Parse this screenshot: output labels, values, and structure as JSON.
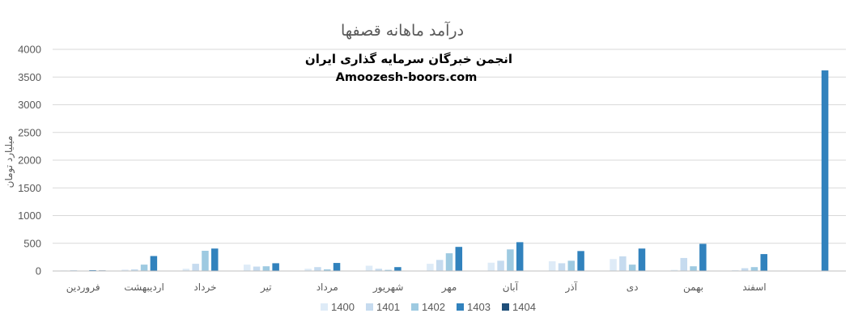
{
  "chart_data": {
    "type": "bar",
    "title": "درآمد ماهانه قصفها",
    "ylabel": "میلیارد تومان",
    "ylim": [
      0,
      4000
    ],
    "yticks": [
      0,
      500,
      1000,
      1500,
      2000,
      2500,
      3000,
      3500,
      4000
    ],
    "grid": true,
    "legend_position": "bottom",
    "categories": [
      "فروردین",
      "اردیبهشت",
      "خرداد",
      "تیر",
      "مرداد",
      "شهریور",
      "مهر",
      "آبان",
      "آذر",
      "دی",
      "بهمن",
      "اسفند",
      ""
    ],
    "series": [
      {
        "name": "1400",
        "color": "#deebf7",
        "values": [
          10,
          25,
          40,
          115,
          40,
          95,
          130,
          150,
          175,
          215,
          20,
          15,
          0
        ]
      },
      {
        "name": "1401",
        "color": "#c6dbef",
        "values": [
          15,
          30,
          130,
          80,
          70,
          40,
          200,
          185,
          140,
          265,
          235,
          50,
          0
        ]
      },
      {
        "name": "1402",
        "color": "#9ecae1",
        "values": [
          5,
          115,
          365,
          85,
          30,
          20,
          320,
          390,
          185,
          115,
          85,
          70,
          0
        ]
      },
      {
        "name": "1403",
        "color": "#3182bd",
        "values": [
          15,
          270,
          405,
          140,
          145,
          70,
          435,
          520,
          360,
          405,
          490,
          305,
          3620
        ]
      },
      {
        "name": "1404",
        "color": "#1f4e79",
        "values": [
          10,
          0,
          0,
          0,
          0,
          0,
          0,
          0,
          0,
          0,
          0,
          0,
          0
        ]
      }
    ]
  },
  "watermark": {
    "line1": "انجمن خبرگان سرمایه گذاری ایران",
    "line2": "Amoozesh-boors.com"
  }
}
